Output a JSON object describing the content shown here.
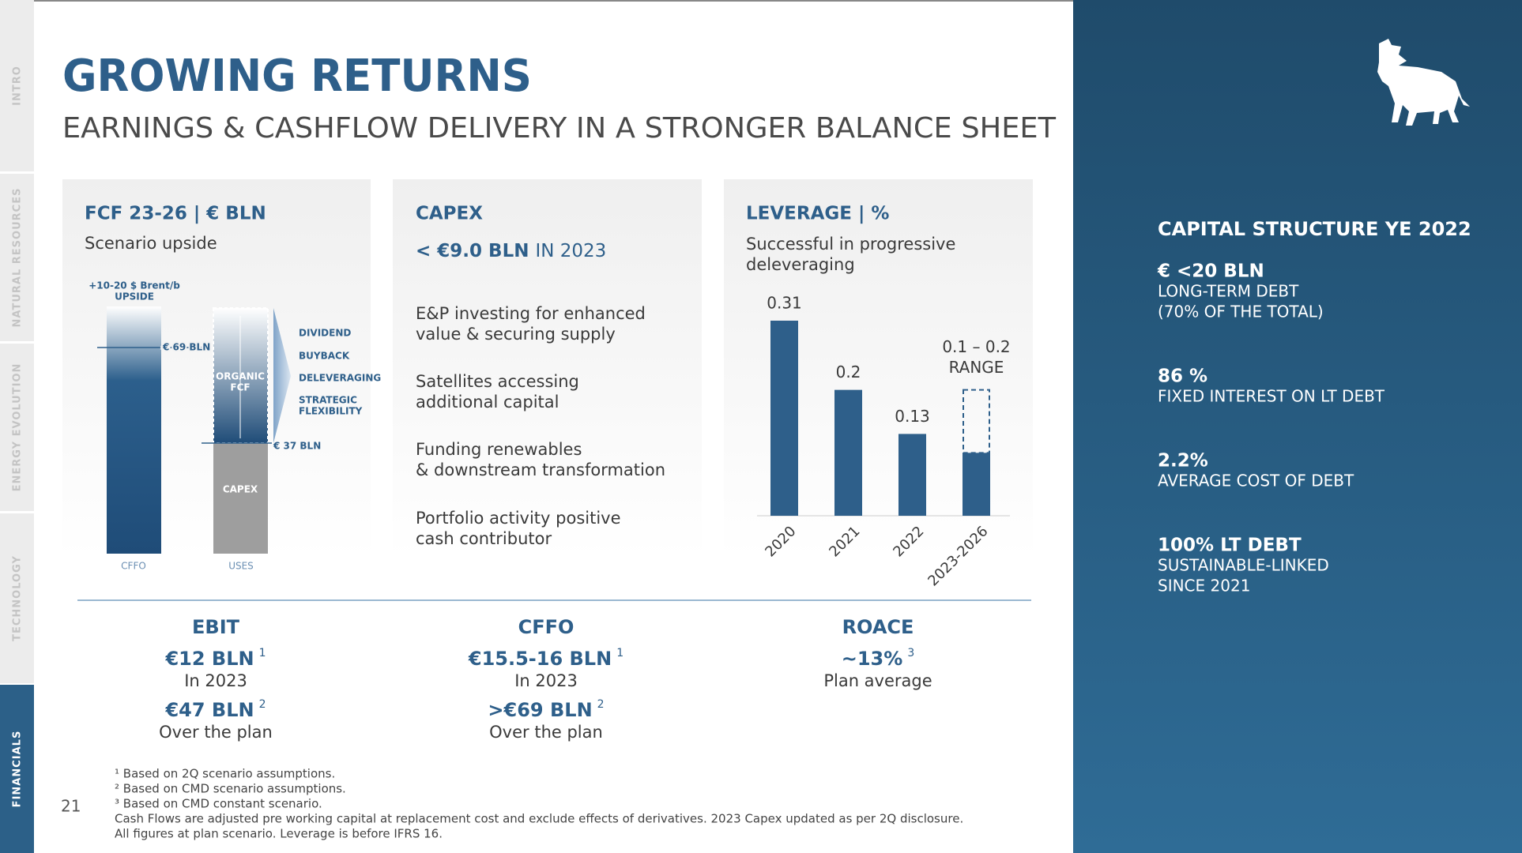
{
  "sidebar": {
    "tabs": [
      "INTRO",
      "NATURAL RESOURCES",
      "ENERGY EVOLUTION",
      "TECHNOLOGY",
      "FINANCIALS"
    ]
  },
  "header": {
    "title": "GROWING RETURNS",
    "subtitle": "EARNINGS & CASHFLOW DELIVERY IN A STRONGER BALANCE SHEET"
  },
  "fcf": {
    "title": "FCF 23-26 | € BLN",
    "subtitle": "Scenario upside",
    "upside": [
      "+10-20 $ Brent/b",
      "UPSIDE"
    ],
    "cffo_label": "€ 69 BLN",
    "capex_label": "€ 37 BLN",
    "organic": [
      "ORGANIC",
      "FCF"
    ],
    "capex": "CAPEX",
    "uses": [
      "DIVIDEND",
      "BUYBACK",
      "DELEVERAGING",
      "STRATEGIC",
      "FLEXIBILITY"
    ],
    "columns": [
      "CFFO",
      "USES"
    ]
  },
  "capex": {
    "title": "CAPEX",
    "headline": "< €9.0 BLN",
    "headline_suffix": "IN 2023",
    "bullets": [
      [
        "E&P investing for enhanced",
        "value & securing supply"
      ],
      [
        "Satellites accessing",
        "additional capital"
      ],
      [
        "Funding renewables",
        "& downstream transformation"
      ],
      [
        "Portfolio activity positive",
        "cash contributor"
      ]
    ]
  },
  "chart_data": {
    "type": "bar",
    "title": "LEVERAGE | %",
    "subtitle": [
      "Successful in progressive",
      "deleveraging"
    ],
    "categories": [
      "2020",
      "2021",
      "2022",
      "2023-2026"
    ],
    "values": [
      0.31,
      0.2,
      0.13,
      0.1
    ],
    "upper": 0.2,
    "value_labels": [
      "0.31",
      "0.2",
      "0.13",
      "0.1 – 0.2"
    ],
    "range_label": "RANGE",
    "color": "#2e5f8a"
  },
  "kpis": [
    {
      "title": "EBIT",
      "items": [
        {
          "value": "€12 BLN",
          "note": "1",
          "label": "In 2023"
        },
        {
          "value": "€47 BLN",
          "note": "2",
          "label": "Over the plan"
        }
      ]
    },
    {
      "title": "CFFO",
      "items": [
        {
          "value": "€15.5-16 BLN",
          "note": "1",
          "label": "In 2023"
        },
        {
          "value": ">€69 BLN",
          "note": "2",
          "label": "Over the plan"
        }
      ]
    },
    {
      "title": "ROACE",
      "items": [
        {
          "value": "~13%",
          "note": "3",
          "label": "Plan average"
        }
      ]
    }
  ],
  "footnotes": [
    "¹ Based on 2Q scenario assumptions.",
    "² Based on CMD scenario assumptions.",
    "³ Based on CMD constant scenario.",
    "Cash Flows are adjusted pre working capital at replacement cost and exclude effects of derivatives. 2023 Capex updated as per 2Q disclosure.",
    "All figures at plan scenario. Leverage is before IFRS 16."
  ],
  "page_number": "21",
  "capital_structure": {
    "title": "CAPITAL STRUCTURE YE 2022",
    "items": [
      {
        "value": "€ <20 BLN",
        "lines": [
          "LONG-TERM DEBT",
          "(70% OF THE TOTAL)"
        ]
      },
      {
        "value": "86 %",
        "lines": [
          "FIXED INTEREST ON LT DEBT"
        ]
      },
      {
        "value": "2.2%",
        "lines": [
          "AVERAGE COST OF DEBT"
        ]
      },
      {
        "value": "100% LT DEBT",
        "lines": [
          "SUSTAINABLE-LINKED",
          "SINCE 2021"
        ]
      }
    ]
  }
}
